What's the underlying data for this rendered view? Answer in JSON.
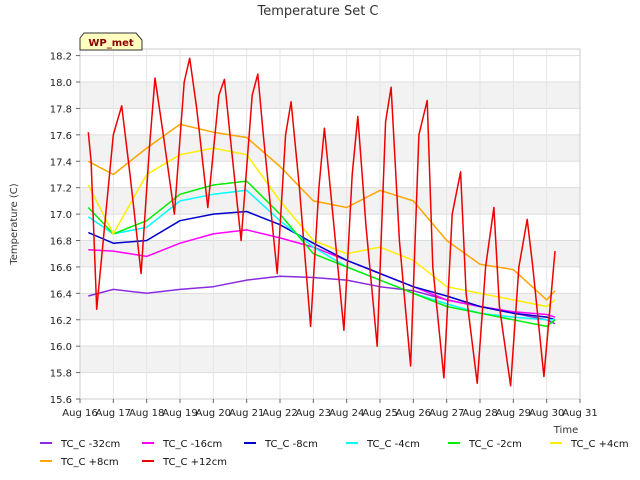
{
  "chart_data": {
    "type": "line",
    "title": "Temperature Set C",
    "xlabel": "Time",
    "ylabel": "Temperature (C)",
    "badge": "WP_met",
    "x_ticks": [
      "Aug 16",
      "Aug 17",
      "Aug 18",
      "Aug 19",
      "Aug 20",
      "Aug 21",
      "Aug 22",
      "Aug 23",
      "Aug 24",
      "Aug 25",
      "Aug 26",
      "Aug 27",
      "Aug 28",
      "Aug 29",
      "Aug 30",
      "Aug 31"
    ],
    "y_ticks": [
      "15.6",
      "15.8",
      "16.0",
      "16.2",
      "16.4",
      "16.6",
      "16.8",
      "17.0",
      "17.2",
      "17.4",
      "17.6",
      "17.8",
      "18.0",
      "18.2"
    ],
    "xlim": [
      "Aug 16",
      "Aug 31"
    ],
    "ylim": [
      15.6,
      18.25
    ],
    "grid": true,
    "legend_position": "bottom",
    "series": [
      {
        "name": "TC_C -32cm",
        "color": "#8a2be2",
        "x": [
          "Aug 16 06:00",
          "Aug 17",
          "Aug 18",
          "Aug 19",
          "Aug 20",
          "Aug 21",
          "Aug 22",
          "Aug 23",
          "Aug 24",
          "Aug 25",
          "Aug 26",
          "Aug 27",
          "Aug 28",
          "Aug 29",
          "Aug 30",
          "Aug 30 06:00"
        ],
        "values": [
          16.38,
          16.43,
          16.4,
          16.43,
          16.45,
          16.5,
          16.53,
          16.52,
          16.5,
          16.45,
          16.42,
          16.35,
          16.3,
          16.25,
          16.2,
          16.17
        ]
      },
      {
        "name": "TC_C -16cm",
        "color": "#ff00ff",
        "x": [
          "Aug 16 06:00",
          "Aug 17",
          "Aug 18",
          "Aug 19",
          "Aug 20",
          "Aug 21",
          "Aug 22",
          "Aug 23",
          "Aug 24",
          "Aug 25",
          "Aug 26",
          "Aug 27",
          "Aug 28",
          "Aug 29",
          "Aug 30",
          "Aug 30 06:00"
        ],
        "values": [
          16.73,
          16.72,
          16.68,
          16.78,
          16.85,
          16.88,
          16.82,
          16.75,
          16.65,
          16.55,
          16.45,
          16.35,
          16.3,
          16.26,
          16.24,
          16.22
        ]
      },
      {
        "name": "TC_C -8cm",
        "color": "#0000cd",
        "x": [
          "Aug 16 06:00",
          "Aug 17",
          "Aug 18",
          "Aug 19",
          "Aug 20",
          "Aug 21",
          "Aug 22",
          "Aug 23",
          "Aug 24",
          "Aug 25",
          "Aug 26",
          "Aug 27",
          "Aug 28",
          "Aug 29",
          "Aug 30",
          "Aug 30 06:00"
        ],
        "values": [
          16.86,
          16.78,
          16.8,
          16.95,
          17.0,
          17.02,
          16.92,
          16.78,
          16.65,
          16.55,
          16.45,
          16.38,
          16.3,
          16.25,
          16.22,
          16.2
        ]
      },
      {
        "name": "TC_C -4cm",
        "color": "#00ffff",
        "x": [
          "Aug 16 06:00",
          "Aug 17",
          "Aug 18",
          "Aug 19",
          "Aug 20",
          "Aug 21",
          "Aug 22",
          "Aug 23",
          "Aug 24",
          "Aug 25",
          "Aug 26",
          "Aug 27",
          "Aug 28",
          "Aug 29",
          "Aug 30",
          "Aug 30 06:00"
        ],
        "values": [
          16.98,
          16.85,
          16.9,
          17.1,
          17.15,
          17.18,
          16.95,
          16.75,
          16.6,
          16.5,
          16.4,
          16.32,
          16.25,
          16.22,
          16.2,
          16.2
        ]
      },
      {
        "name": "TC_C -2cm",
        "color": "#00ee00",
        "x": [
          "Aug 16 06:00",
          "Aug 17",
          "Aug 18",
          "Aug 19",
          "Aug 20",
          "Aug 21",
          "Aug 22",
          "Aug 23",
          "Aug 24",
          "Aug 25",
          "Aug 26",
          "Aug 27",
          "Aug 28",
          "Aug 29",
          "Aug 30",
          "Aug 30 06:00"
        ],
        "values": [
          17.05,
          16.85,
          16.95,
          17.15,
          17.22,
          17.25,
          17.0,
          16.7,
          16.6,
          16.5,
          16.4,
          16.3,
          16.25,
          16.2,
          16.15,
          16.2
        ]
      },
      {
        "name": "TC_C +4cm",
        "color": "#ffee00",
        "x": [
          "Aug 16 06:00",
          "Aug 17",
          "Aug 18",
          "Aug 19",
          "Aug 20",
          "Aug 21",
          "Aug 22",
          "Aug 23",
          "Aug 24",
          "Aug 25",
          "Aug 26",
          "Aug 27",
          "Aug 28",
          "Aug 29",
          "Aug 30",
          "Aug 30 06:00"
        ],
        "values": [
          17.22,
          16.85,
          17.3,
          17.45,
          17.5,
          17.45,
          17.1,
          16.8,
          16.7,
          16.75,
          16.65,
          16.45,
          16.4,
          16.35,
          16.3,
          16.35
        ]
      },
      {
        "name": "TC_C +8cm",
        "color": "#ffa500",
        "x": [
          "Aug 16 06:00",
          "Aug 17",
          "Aug 18",
          "Aug 19",
          "Aug 20",
          "Aug 21",
          "Aug 22",
          "Aug 23",
          "Aug 24",
          "Aug 25",
          "Aug 26",
          "Aug 27",
          "Aug 28",
          "Aug 29",
          "Aug 30",
          "Aug 30 06:00"
        ],
        "values": [
          17.4,
          17.3,
          17.5,
          17.68,
          17.62,
          17.58,
          17.36,
          17.1,
          17.05,
          17.18,
          17.1,
          16.8,
          16.62,
          16.58,
          16.35,
          16.42
        ]
      },
      {
        "name": "TC_C +12cm",
        "color": "#ee0000",
        "x": [
          "Aug 16 06:00",
          "Aug 16 08:00",
          "Aug 16 12:00",
          "Aug 17",
          "Aug 17 06:00",
          "Aug 17 12:00",
          "Aug 17 20:00",
          "Aug 18 02:00",
          "Aug 18 06:00",
          "Aug 18 12:00",
          "Aug 18 20:00",
          "Aug 19 03:00",
          "Aug 19 07:00",
          "Aug 19 12:00",
          "Aug 19 20:00",
          "Aug 20 04:00",
          "Aug 20 08:00",
          "Aug 20 12:00",
          "Aug 20 20:00",
          "Aug 21 04:00",
          "Aug 21 08:00",
          "Aug 21 12:00",
          "Aug 21 22:00",
          "Aug 22 04:00",
          "Aug 22 08:00",
          "Aug 22 14:00",
          "Aug 22 22:00",
          "Aug 23 04:00",
          "Aug 23 08:00",
          "Aug 23 14:00",
          "Aug 23 22:00",
          "Aug 24 04:00",
          "Aug 24 08:00",
          "Aug 24 14:00",
          "Aug 24 22:00",
          "Aug 25 04:00",
          "Aug 25 08:00",
          "Aug 25 14:00",
          "Aug 25 22:00",
          "Aug 26 04:00",
          "Aug 26 10:00",
          "Aug 26 14:00",
          "Aug 26 22:00",
          "Aug 27 04:00",
          "Aug 27 10:00",
          "Aug 27 14:00",
          "Aug 27 22:00",
          "Aug 28 04:00",
          "Aug 28 10:00",
          "Aug 28 14:00",
          "Aug 28 22:00",
          "Aug 29 04:00",
          "Aug 29 10:00",
          "Aug 29 14:00",
          "Aug 29 22:00",
          "Aug 30 06:00"
        ],
        "values": [
          17.62,
          17.4,
          16.28,
          17.6,
          17.82,
          17.3,
          16.55,
          17.5,
          18.03,
          17.6,
          17.0,
          18.0,
          18.18,
          17.8,
          17.05,
          17.9,
          18.02,
          17.6,
          16.8,
          17.9,
          18.06,
          17.6,
          16.55,
          17.6,
          17.85,
          17.2,
          16.15,
          17.2,
          17.65,
          17.0,
          16.12,
          17.3,
          17.74,
          16.9,
          16.0,
          17.7,
          17.96,
          16.8,
          15.85,
          17.6,
          17.86,
          16.6,
          15.76,
          17.0,
          17.32,
          16.4,
          15.72,
          16.6,
          17.05,
          16.3,
          15.7,
          16.6,
          16.96,
          16.6,
          15.77,
          16.72
        ]
      }
    ]
  }
}
